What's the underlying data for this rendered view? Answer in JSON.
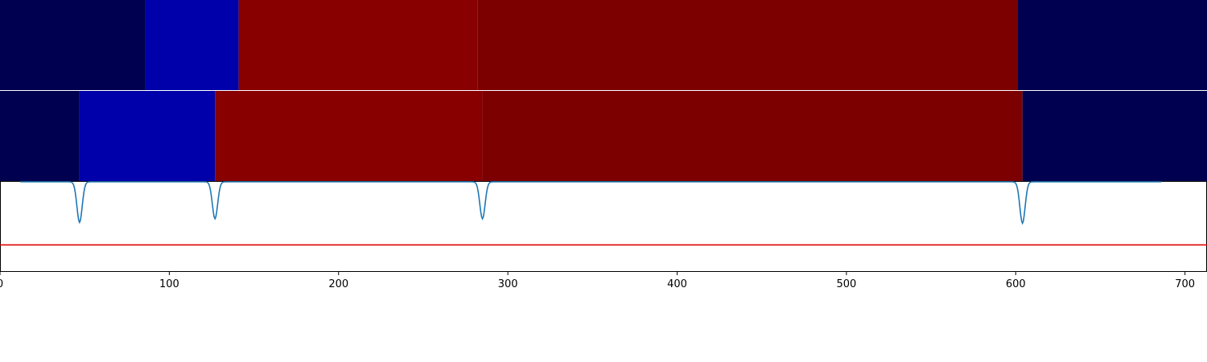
{
  "chart_data": [
    {
      "type": "heatmap",
      "name": "segmentation-row-1",
      "xlim": [
        0,
        713
      ],
      "segments": [
        {
          "start": 0,
          "end": 86,
          "color": "#000050"
        },
        {
          "start": 86,
          "end": 141,
          "color": "#0000aa"
        },
        {
          "start": 141,
          "end": 282,
          "color": "#880000"
        },
        {
          "start": 282,
          "end": 601,
          "color": "#7c0000"
        },
        {
          "start": 601,
          "end": 713,
          "color": "#000050"
        }
      ]
    },
    {
      "type": "heatmap",
      "name": "segmentation-row-2",
      "xlim": [
        0,
        713
      ],
      "segments": [
        {
          "start": 0,
          "end": 47,
          "color": "#000050"
        },
        {
          "start": 47,
          "end": 127,
          "color": "#0000aa"
        },
        {
          "start": 127,
          "end": 285,
          "color": "#880000"
        },
        {
          "start": 285,
          "end": 604,
          "color": "#7c0000"
        },
        {
          "start": 604,
          "end": 713,
          "color": "#000050"
        }
      ]
    },
    {
      "type": "line",
      "name": "boundary-score",
      "xlim": [
        0,
        713
      ],
      "ylim": [
        0,
        1
      ],
      "baseline": 1.0,
      "dips": [
        {
          "center": 47,
          "depth": 0.45
        },
        {
          "center": 127,
          "depth": 0.41
        },
        {
          "center": 285,
          "depth": 0.41
        },
        {
          "center": 604,
          "depth": 0.46
        }
      ],
      "threshold": 0.3,
      "line_color": "#1f77b4",
      "threshold_color": "#e00000",
      "xticks": [
        0,
        100,
        200,
        300,
        400,
        500,
        600,
        700
      ]
    }
  ]
}
